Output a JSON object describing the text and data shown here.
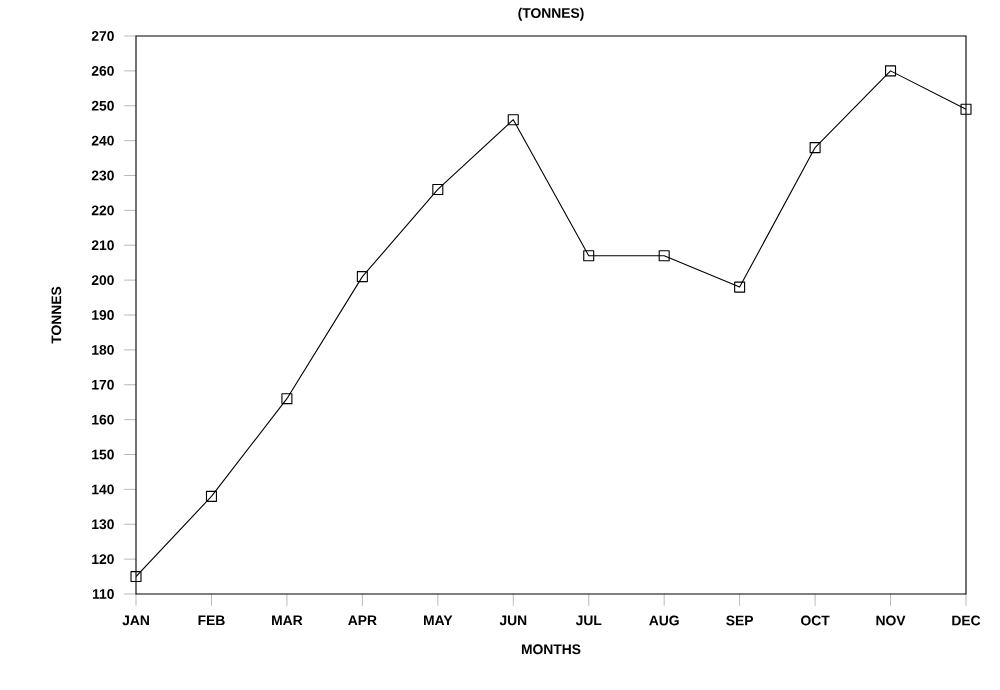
{
  "chart_data": {
    "type": "line",
    "title": "(TONNES)",
    "xlabel": "MONTHS",
    "ylabel": "TONNES",
    "categories": [
      "JAN",
      "FEB",
      "MAR",
      "APR",
      "MAY",
      "JUN",
      "JUL",
      "AUG",
      "SEP",
      "OCT",
      "NOV",
      "DEC"
    ],
    "values": [
      115,
      138,
      166,
      201,
      226,
      246,
      207,
      207,
      198,
      238,
      260,
      249
    ],
    "color": "#000000",
    "marker": "square",
    "line_style": "solid",
    "grid": false,
    "ylim": [
      110,
      270
    ],
    "yticks": [
      110,
      120,
      130,
      140,
      150,
      160,
      170,
      180,
      190,
      200,
      210,
      220,
      230,
      240,
      250,
      260,
      270
    ]
  }
}
